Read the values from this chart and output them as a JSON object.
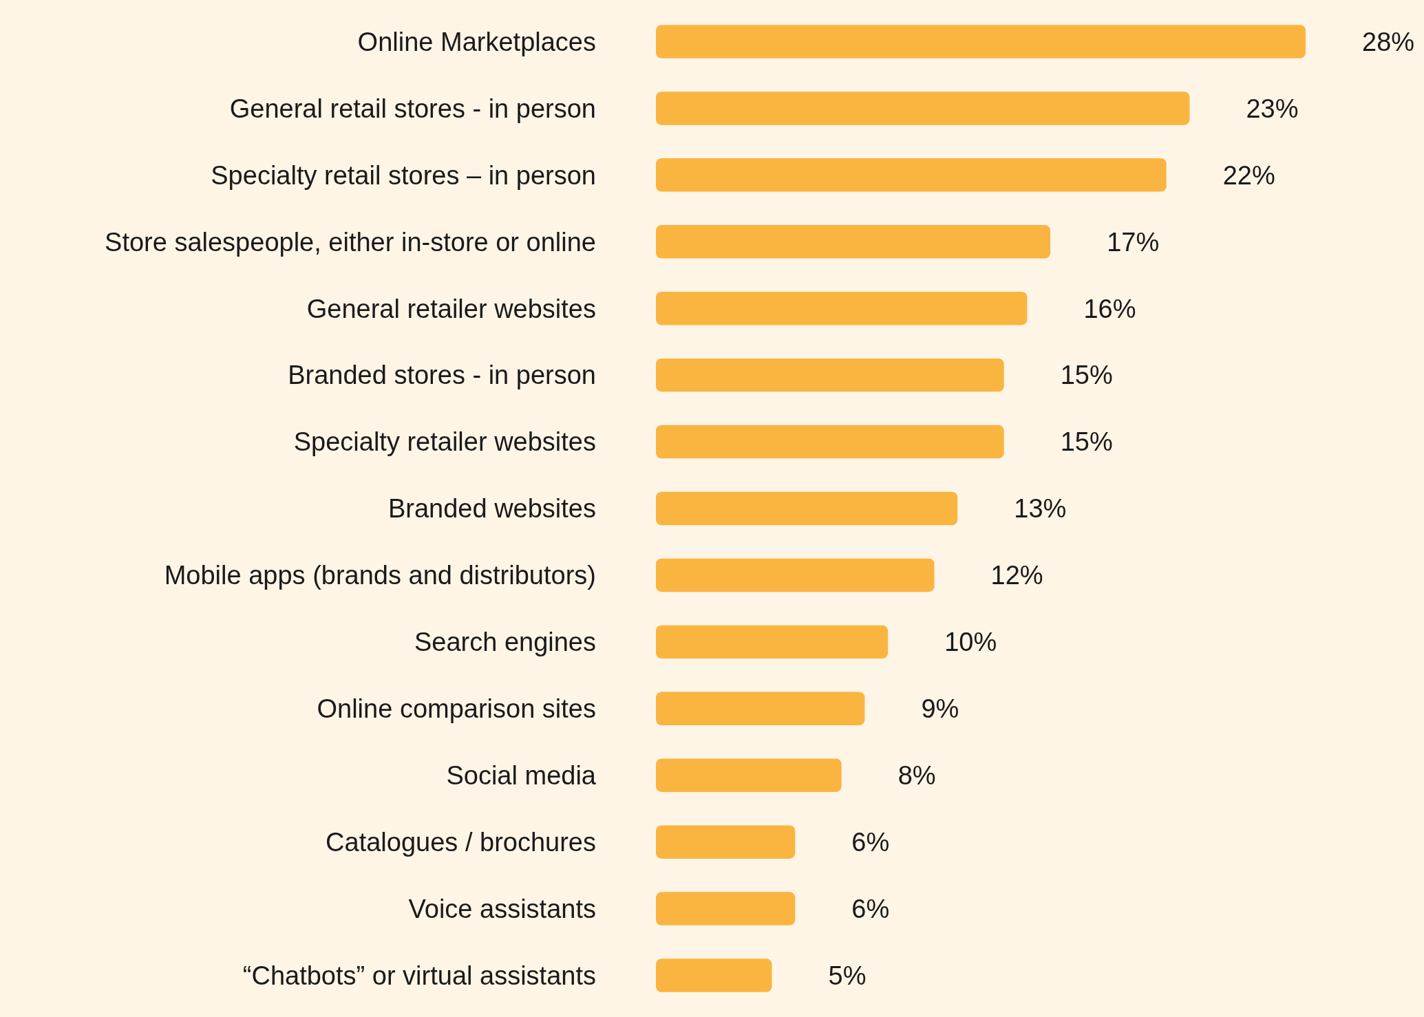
{
  "chart_data": {
    "type": "bar",
    "orientation": "horizontal",
    "categories": [
      "Online Marketplaces",
      "General retail stores - in person",
      "Specialty retail stores – in person",
      "Store salespeople, either in-store or online",
      "General retailer websites",
      "Branded stores - in person",
      "Specialty retailer websites",
      "Branded websites",
      "Mobile apps (brands and distributors)",
      "Search engines",
      "Online comparison sites",
      "Social media",
      "Catalogues / brochures",
      "Voice assistants",
      "“Chatbots” or virtual assistants"
    ],
    "values": [
      28,
      23,
      22,
      17,
      16,
      15,
      15,
      13,
      12,
      10,
      9,
      8,
      6,
      6,
      5
    ],
    "value_labels": [
      "28%",
      "23%",
      "22%",
      "17%",
      "16%",
      "15%",
      "15%",
      "13%",
      "12%",
      "10%",
      "9%",
      "8%",
      "6%",
      "6%",
      "5%"
    ],
    "color": "#fab541"
  }
}
